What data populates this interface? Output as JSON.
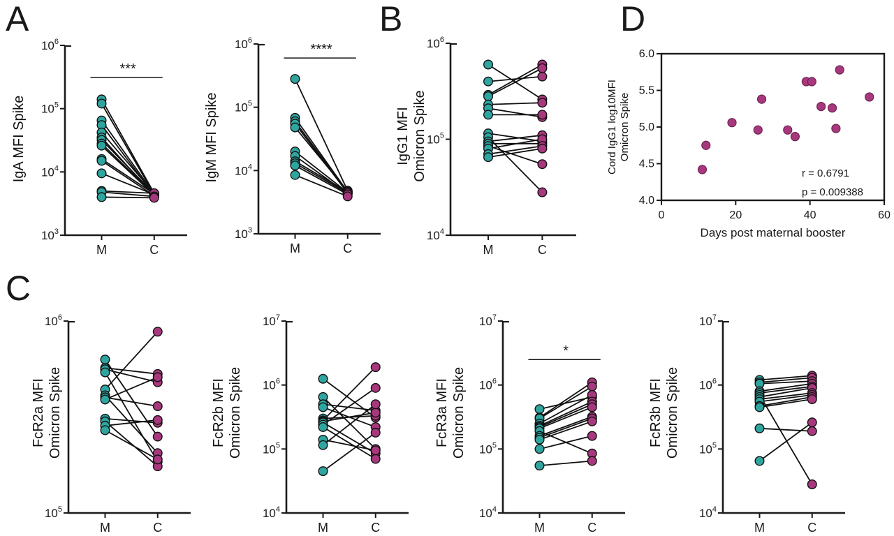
{
  "panel_labels": {
    "A": "A",
    "B": "B",
    "C": "C",
    "D": "D"
  },
  "colors": {
    "maternal": "#2FA5A0",
    "cord": "#A8387E",
    "cord_stroke": "#6E2350",
    "dot_stroke": "#111111",
    "axis": "#1a1a1a"
  },
  "chart_data": [
    {
      "id": "iga",
      "panel": "A",
      "type": "paired-line",
      "ylabel1": "IgA MFI Spike",
      "ylabel2": "",
      "categories": [
        "M",
        "C"
      ],
      "yscale": "log10",
      "ymin_exp": 3,
      "ymax_exp": 6,
      "yticks_exp": [
        3,
        4,
        5,
        6
      ],
      "significance": "***",
      "sig_value": 310000,
      "pairs": [
        [
          140000,
          4600
        ],
        [
          120000,
          4400
        ],
        [
          65000,
          4500
        ],
        [
          55000,
          4300
        ],
        [
          42000,
          4600
        ],
        [
          35000,
          4200
        ],
        [
          32000,
          4500
        ],
        [
          28000,
          4400
        ],
        [
          26000,
          4300
        ],
        [
          16000,
          4500
        ],
        [
          15000,
          4200
        ],
        [
          9500,
          4400
        ],
        [
          5000,
          4600
        ],
        [
          4800,
          4100
        ],
        [
          4000,
          3900
        ]
      ]
    },
    {
      "id": "igm",
      "panel": "A",
      "type": "paired-line",
      "ylabel1": "IgM MFI Spike",
      "ylabel2": "",
      "categories": [
        "M",
        "C"
      ],
      "yscale": "log10",
      "ymin_exp": 3,
      "ymax_exp": 6,
      "yticks_exp": [
        3,
        4,
        5,
        6
      ],
      "significance": "****",
      "sig_value": 600000,
      "pairs": [
        [
          280000,
          4800
        ],
        [
          68000,
          4600
        ],
        [
          60000,
          4500
        ],
        [
          55000,
          4400
        ],
        [
          48000,
          4700
        ],
        [
          20000,
          4500
        ],
        [
          17000,
          4300
        ],
        [
          14000,
          4600
        ],
        [
          13000,
          4400
        ],
        [
          12000,
          4200
        ],
        [
          8500,
          3900
        ]
      ]
    },
    {
      "id": "igg1",
      "panel": "B",
      "type": "paired-line",
      "ylabel1": "IgG1 MFI",
      "ylabel2": "Omicron Spike",
      "categories": [
        "M",
        "C"
      ],
      "yscale": "log10",
      "ymin_exp": 4,
      "ymax_exp": 6,
      "yticks_exp": [
        4,
        5,
        6
      ],
      "significance": null,
      "sig_value": null,
      "pairs": [
        [
          600000,
          260000
        ],
        [
          400000,
          450000
        ],
        [
          290000,
          600000
        ],
        [
          280000,
          550000
        ],
        [
          230000,
          240000
        ],
        [
          210000,
          170000
        ],
        [
          180000,
          180000
        ],
        [
          115000,
          95000
        ],
        [
          105000,
          28000
        ],
        [
          95000,
          110000
        ],
        [
          90000,
          90000
        ],
        [
          85000,
          55000
        ],
        [
          80000,
          100000
        ],
        [
          70000,
          85000
        ],
        [
          65000,
          80000
        ]
      ]
    },
    {
      "id": "fcr2a",
      "panel": "C",
      "type": "paired-line",
      "ylabel1": "FcR2a MFI",
      "ylabel2": "Omicron Spike",
      "categories": [
        "M",
        "C"
      ],
      "yscale": "log10",
      "ymin_exp": 5,
      "ymax_exp": 6,
      "yticks_exp": [
        5,
        6
      ],
      "significance": null,
      "sig_value": null,
      "pairs": [
        [
          630000,
          250000
        ],
        [
          570000,
          530000
        ],
        [
          560000,
          480000
        ],
        [
          540000,
          185000
        ],
        [
          440000,
          880000
        ],
        [
          410000,
          205000
        ],
        [
          400000,
          360000
        ],
        [
          390000,
          510000
        ],
        [
          310000,
          295000
        ],
        [
          300000,
          175000
        ],
        [
          285000,
          305000
        ],
        [
          270000,
          190000
        ]
      ]
    },
    {
      "id": "fcr2b",
      "panel": "C",
      "type": "paired-line",
      "ylabel1": "FcR2b MFI",
      "ylabel2": "Omicron Spike",
      "categories": [
        "M",
        "C"
      ],
      "yscale": "log10",
      "ymin_exp": 4,
      "ymax_exp": 7,
      "yticks_exp": [
        4,
        5,
        6,
        7
      ],
      "significance": null,
      "sig_value": null,
      "pairs": [
        [
          1250000,
          310000
        ],
        [
          650000,
          100000
        ],
        [
          500000,
          400000
        ],
        [
          450000,
          220000
        ],
        [
          300000,
          330000
        ],
        [
          280000,
          1900000
        ],
        [
          270000,
          370000
        ],
        [
          260000,
          85000
        ],
        [
          240000,
          900000
        ],
        [
          220000,
          70000
        ],
        [
          140000,
          95000
        ],
        [
          115000,
          500000
        ],
        [
          45000,
          180000
        ]
      ]
    },
    {
      "id": "fcr3a",
      "panel": "C",
      "type": "paired-line",
      "ylabel1": "FcR3a MFI",
      "ylabel2": "Omicron Spike",
      "categories": [
        "M",
        "C"
      ],
      "yscale": "log10",
      "ymin_exp": 4,
      "ymax_exp": 7,
      "yticks_exp": [
        4,
        5,
        6,
        7
      ],
      "significance": "*",
      "sig_value": 2500000,
      "pairs": [
        [
          420000,
          650000
        ],
        [
          310000,
          1100000
        ],
        [
          300000,
          950000
        ],
        [
          250000,
          700000
        ],
        [
          230000,
          550000
        ],
        [
          220000,
          500000
        ],
        [
          210000,
          450000
        ],
        [
          190000,
          85000
        ],
        [
          160000,
          320000
        ],
        [
          150000,
          300000
        ],
        [
          140000,
          270000
        ],
        [
          100000,
          160000
        ],
        [
          55000,
          65000
        ]
      ]
    },
    {
      "id": "fcr3b",
      "panel": "C",
      "type": "paired-line",
      "ylabel1": "FcR3b MFI",
      "ylabel2": "Omicron Spike",
      "categories": [
        "M",
        "C"
      ],
      "yscale": "log10",
      "ymin_exp": 4,
      "ymax_exp": 7,
      "yticks_exp": [
        4,
        5,
        6,
        7
      ],
      "significance": null,
      "sig_value": null,
      "pairs": [
        [
          1200000,
          1400000
        ],
        [
          1100000,
          1300000
        ],
        [
          1050000,
          1150000
        ],
        [
          800000,
          1050000
        ],
        [
          750000,
          950000
        ],
        [
          700000,
          28000
        ],
        [
          650000,
          900000
        ],
        [
          600000,
          750000
        ],
        [
          550000,
          700000
        ],
        [
          470000,
          650000
        ],
        [
          450000,
          600000
        ],
        [
          210000,
          190000
        ],
        [
          65000,
          260000
        ]
      ]
    },
    {
      "id": "cord-igg1",
      "panel": "D",
      "type": "scatter",
      "ylabel1": "Cord IgG1 log10MFI",
      "ylabel2": "Omicron Spike",
      "xlabel": "Days post maternal booster",
      "xlim": [
        0,
        60
      ],
      "xticks": [
        0,
        20,
        40,
        60
      ],
      "ylim": [
        4.0,
        6.0
      ],
      "yticks": [
        4.0,
        4.5,
        5.0,
        5.5,
        6.0
      ],
      "r_text": "r = 0.6791",
      "p_text": "p = 0.009388",
      "points": [
        [
          11,
          4.42
        ],
        [
          12,
          4.75
        ],
        [
          19,
          5.06
        ],
        [
          26,
          4.96
        ],
        [
          27,
          5.38
        ],
        [
          34,
          4.96
        ],
        [
          36,
          4.87
        ],
        [
          39,
          5.62
        ],
        [
          40.5,
          5.62
        ],
        [
          43,
          5.28
        ],
        [
          46,
          5.26
        ],
        [
          47,
          4.98
        ],
        [
          48,
          5.78
        ],
        [
          56,
          5.41
        ]
      ]
    }
  ]
}
